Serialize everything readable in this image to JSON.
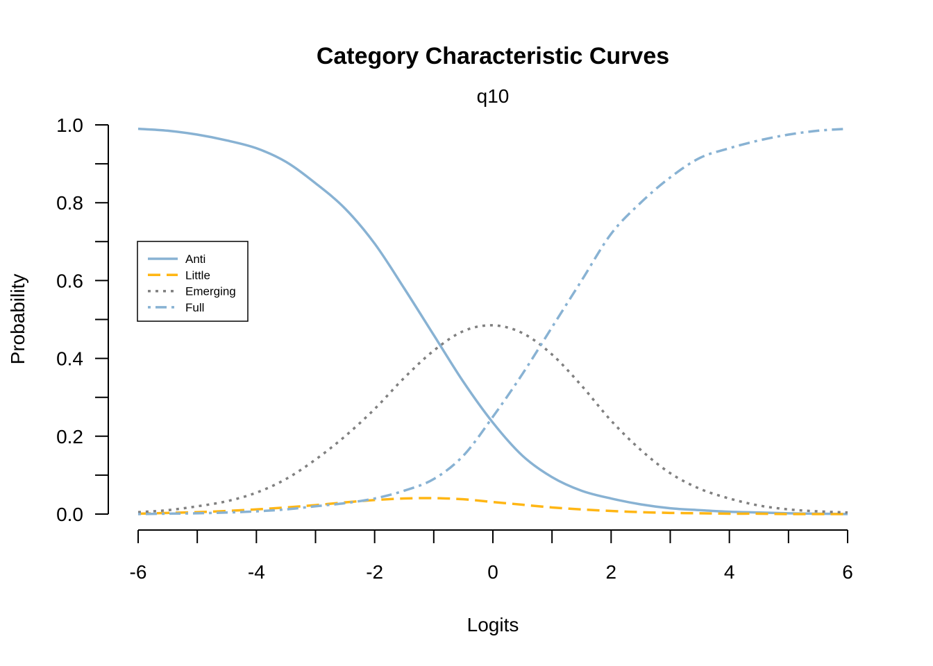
{
  "chart_data": {
    "type": "line",
    "title": "Category Characteristic Curves",
    "subtitle": "q10",
    "xlabel": "Logits",
    "ylabel": "Probability",
    "xlim": [
      -6,
      6
    ],
    "ylim": [
      0,
      1
    ],
    "x_ticks": [
      -6,
      -5,
      -4,
      -3,
      -2,
      -1,
      0,
      1,
      2,
      3,
      4,
      5,
      6
    ],
    "x_tick_labels": [
      "-6",
      "-4",
      "-2",
      "0",
      "2",
      "4",
      "6"
    ],
    "x_tick_label_values": [
      -6,
      -4,
      -2,
      0,
      2,
      4,
      6
    ],
    "y_ticks": [
      0,
      0.1,
      0.2,
      0.3,
      0.4,
      0.5,
      0.6,
      0.7,
      0.8,
      0.9,
      1.0
    ],
    "y_tick_labels": [
      "0.0",
      "0.2",
      "0.4",
      "0.6",
      "0.8",
      "1.0"
    ],
    "y_tick_label_values": [
      0,
      0.2,
      0.4,
      0.6,
      0.8,
      1.0
    ],
    "grid": false,
    "legend_position": "left",
    "x": [
      -6,
      -5.5,
      -5,
      -4.5,
      -4,
      -3.5,
      -3,
      -2.5,
      -2,
      -1.5,
      -1,
      -0.5,
      0,
      0.5,
      1,
      1.5,
      2,
      2.5,
      3,
      3.5,
      4,
      4.5,
      5,
      5.5,
      6
    ],
    "series": [
      {
        "name": "Anti",
        "color": "#88b2d3",
        "dash": "solid",
        "values": [
          0.99,
          0.985,
          0.975,
          0.96,
          0.94,
          0.905,
          0.85,
          0.785,
          0.695,
          0.58,
          0.46,
          0.34,
          0.235,
          0.15,
          0.095,
          0.06,
          0.04,
          0.025,
          0.015,
          0.01,
          0.006,
          0.004,
          0.002,
          0.001,
          0.0
        ]
      },
      {
        "name": "Little",
        "color": "#ffb614",
        "dash": "dashed",
        "values": [
          0.001,
          0.003,
          0.005,
          0.008,
          0.012,
          0.017,
          0.023,
          0.03,
          0.036,
          0.04,
          0.041,
          0.038,
          0.031,
          0.024,
          0.017,
          0.012,
          0.008,
          0.005,
          0.003,
          0.002,
          0.001,
          0.001,
          0.0,
          0.0,
          0.0
        ]
      },
      {
        "name": "Emerging",
        "color": "#808080",
        "dash": "dotted",
        "values": [
          0.005,
          0.01,
          0.02,
          0.033,
          0.055,
          0.09,
          0.14,
          0.2,
          0.27,
          0.35,
          0.42,
          0.47,
          0.485,
          0.465,
          0.41,
          0.33,
          0.24,
          0.165,
          0.105,
          0.065,
          0.04,
          0.022,
          0.012,
          0.007,
          0.004
        ]
      },
      {
        "name": "Full",
        "color": "#88b2d3",
        "dash": "dashdot",
        "values": [
          0.0,
          0.001,
          0.002,
          0.004,
          0.007,
          0.012,
          0.02,
          0.028,
          0.04,
          0.06,
          0.09,
          0.15,
          0.25,
          0.36,
          0.48,
          0.6,
          0.72,
          0.8,
          0.865,
          0.915,
          0.94,
          0.96,
          0.975,
          0.985,
          0.99
        ]
      }
    ]
  }
}
